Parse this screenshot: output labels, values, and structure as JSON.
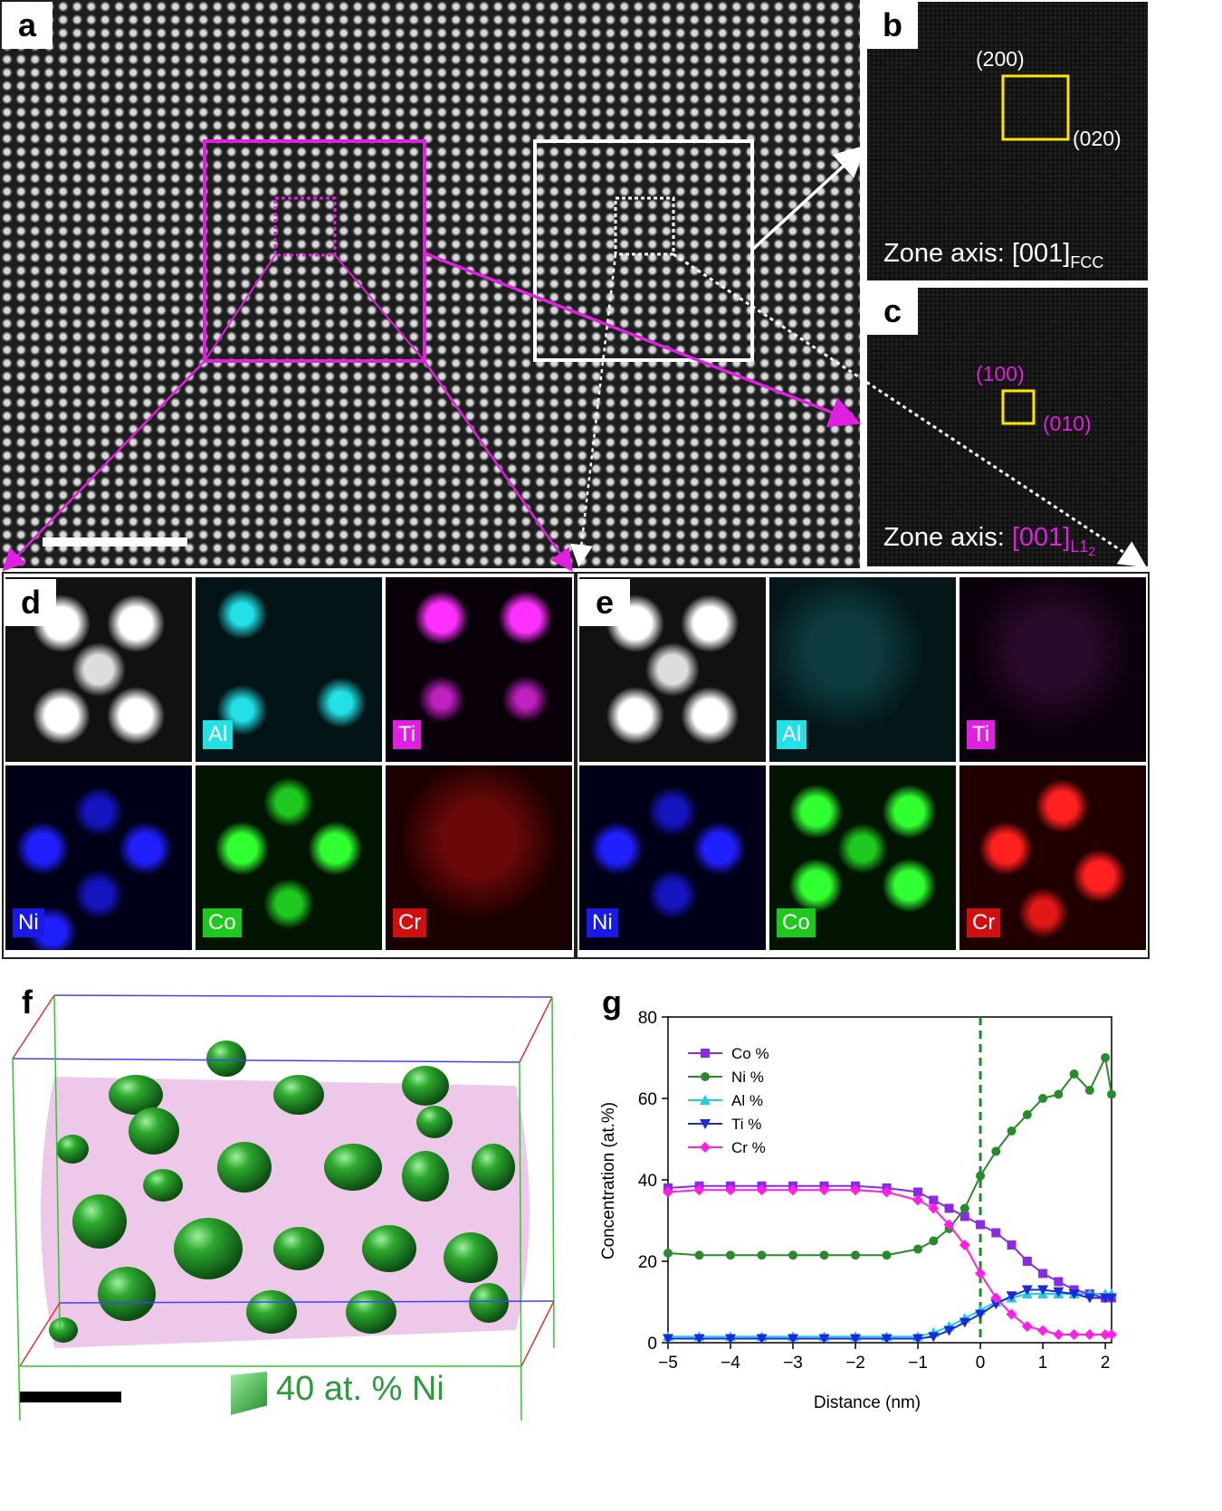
{
  "panels": {
    "a": "a",
    "b": "b",
    "c": "c",
    "d": "d",
    "e": "e",
    "f": "f",
    "g": "g"
  },
  "fft_b": {
    "label_200": "(200)",
    "label_020": "(020)",
    "zone_prefix": "Zone axis: [001]",
    "zone_sub": "FCC"
  },
  "fft_c": {
    "label_100": "(100)",
    "label_010": "(010)",
    "zone_prefix": "Zone axis: ",
    "zone_index": "[001]",
    "zone_sub": "L1",
    "zone_sub2": "2"
  },
  "maps_d": [
    {
      "tag": "",
      "color": "#e0e0e0"
    },
    {
      "tag": "Al",
      "color": "#22e0e6"
    },
    {
      "tag": "Ti",
      "color": "#e020e0"
    },
    {
      "tag": "Ni",
      "color": "#1a1ae8"
    },
    {
      "tag": "Co",
      "color": "#1ec81e"
    },
    {
      "tag": "Cr",
      "color": "#d01010"
    }
  ],
  "maps_e": [
    {
      "tag": "",
      "color": "#e0e0e0"
    },
    {
      "tag": "Al",
      "color": "#22e0e6"
    },
    {
      "tag": "Ti",
      "color": "#e020e0"
    },
    {
      "tag": "Ni",
      "color": "#1a1ae8"
    },
    {
      "tag": "Co",
      "color": "#1ec81e"
    },
    {
      "tag": "Cr",
      "color": "#d01010"
    }
  ],
  "apt": {
    "iso_label": "40 at. % Ni",
    "iso_color": "#2a9a3a"
  },
  "chart_data": {
    "type": "line",
    "xlabel": "Distance (nm)",
    "ylabel": "Concentration  (at.%)",
    "xlim": [
      -5,
      2.1
    ],
    "ylim": [
      0,
      80
    ],
    "xticks": [
      -5,
      -4,
      -3,
      -2,
      -1,
      0,
      1,
      2
    ],
    "yticks": [
      0,
      20,
      40,
      60,
      80
    ],
    "xtick_labels": [
      "−5",
      "−4",
      "−3",
      "−2",
      "−1",
      "0",
      "1",
      "2"
    ],
    "ytick_labels": [
      "0",
      "20",
      "40",
      "60",
      "80"
    ],
    "interface_x": 0,
    "legend_position": "top-left",
    "x": [
      -5,
      -4.5,
      -4,
      -3.5,
      -3,
      -2.5,
      -2,
      -1.5,
      -1,
      -0.75,
      -0.5,
      -0.25,
      0,
      0.25,
      0.5,
      0.75,
      1,
      1.25,
      1.5,
      1.75,
      2,
      2.1
    ],
    "series": [
      {
        "name": "Co %",
        "color": "#8a2be2",
        "marker": "square",
        "values": [
          38,
          38.5,
          38.5,
          38.5,
          38.5,
          38.5,
          38.5,
          38,
          37,
          35,
          33,
          31,
          29,
          27,
          24,
          20,
          17,
          15,
          13,
          12,
          11,
          11
        ]
      },
      {
        "name": "Ni %",
        "color": "#2a8a2a",
        "marker": "circle",
        "values": [
          22,
          21.5,
          21.5,
          21.5,
          21.5,
          21.5,
          21.5,
          21.5,
          23,
          25,
          28,
          33,
          41,
          47,
          52,
          56,
          60,
          61,
          66,
          62,
          70,
          61
        ]
      },
      {
        "name": "Al %",
        "color": "#1ecfe0",
        "marker": "triangle-up",
        "values": [
          1.5,
          1.5,
          1.5,
          1.5,
          1.5,
          1.5,
          1.5,
          1.5,
          1.5,
          2.5,
          4,
          6,
          8,
          10,
          11,
          12,
          12,
          12,
          12,
          12,
          12,
          12
        ]
      },
      {
        "name": "Ti %",
        "color": "#1a2ad8",
        "marker": "triangle-down",
        "values": [
          1,
          1,
          1,
          1,
          1,
          1,
          1,
          1,
          1,
          1.5,
          3,
          5,
          7,
          9.5,
          11.5,
          13,
          13,
          12.5,
          12,
          11,
          11,
          11
        ]
      },
      {
        "name": "Cr %",
        "color": "#ff1ee6",
        "marker": "diamond",
        "values": [
          37,
          37.5,
          37.5,
          37.5,
          37.5,
          37.5,
          37.5,
          37,
          35,
          33,
          29,
          24,
          17,
          11,
          7,
          4,
          3,
          2,
          2,
          2,
          2,
          2
        ]
      }
    ]
  }
}
